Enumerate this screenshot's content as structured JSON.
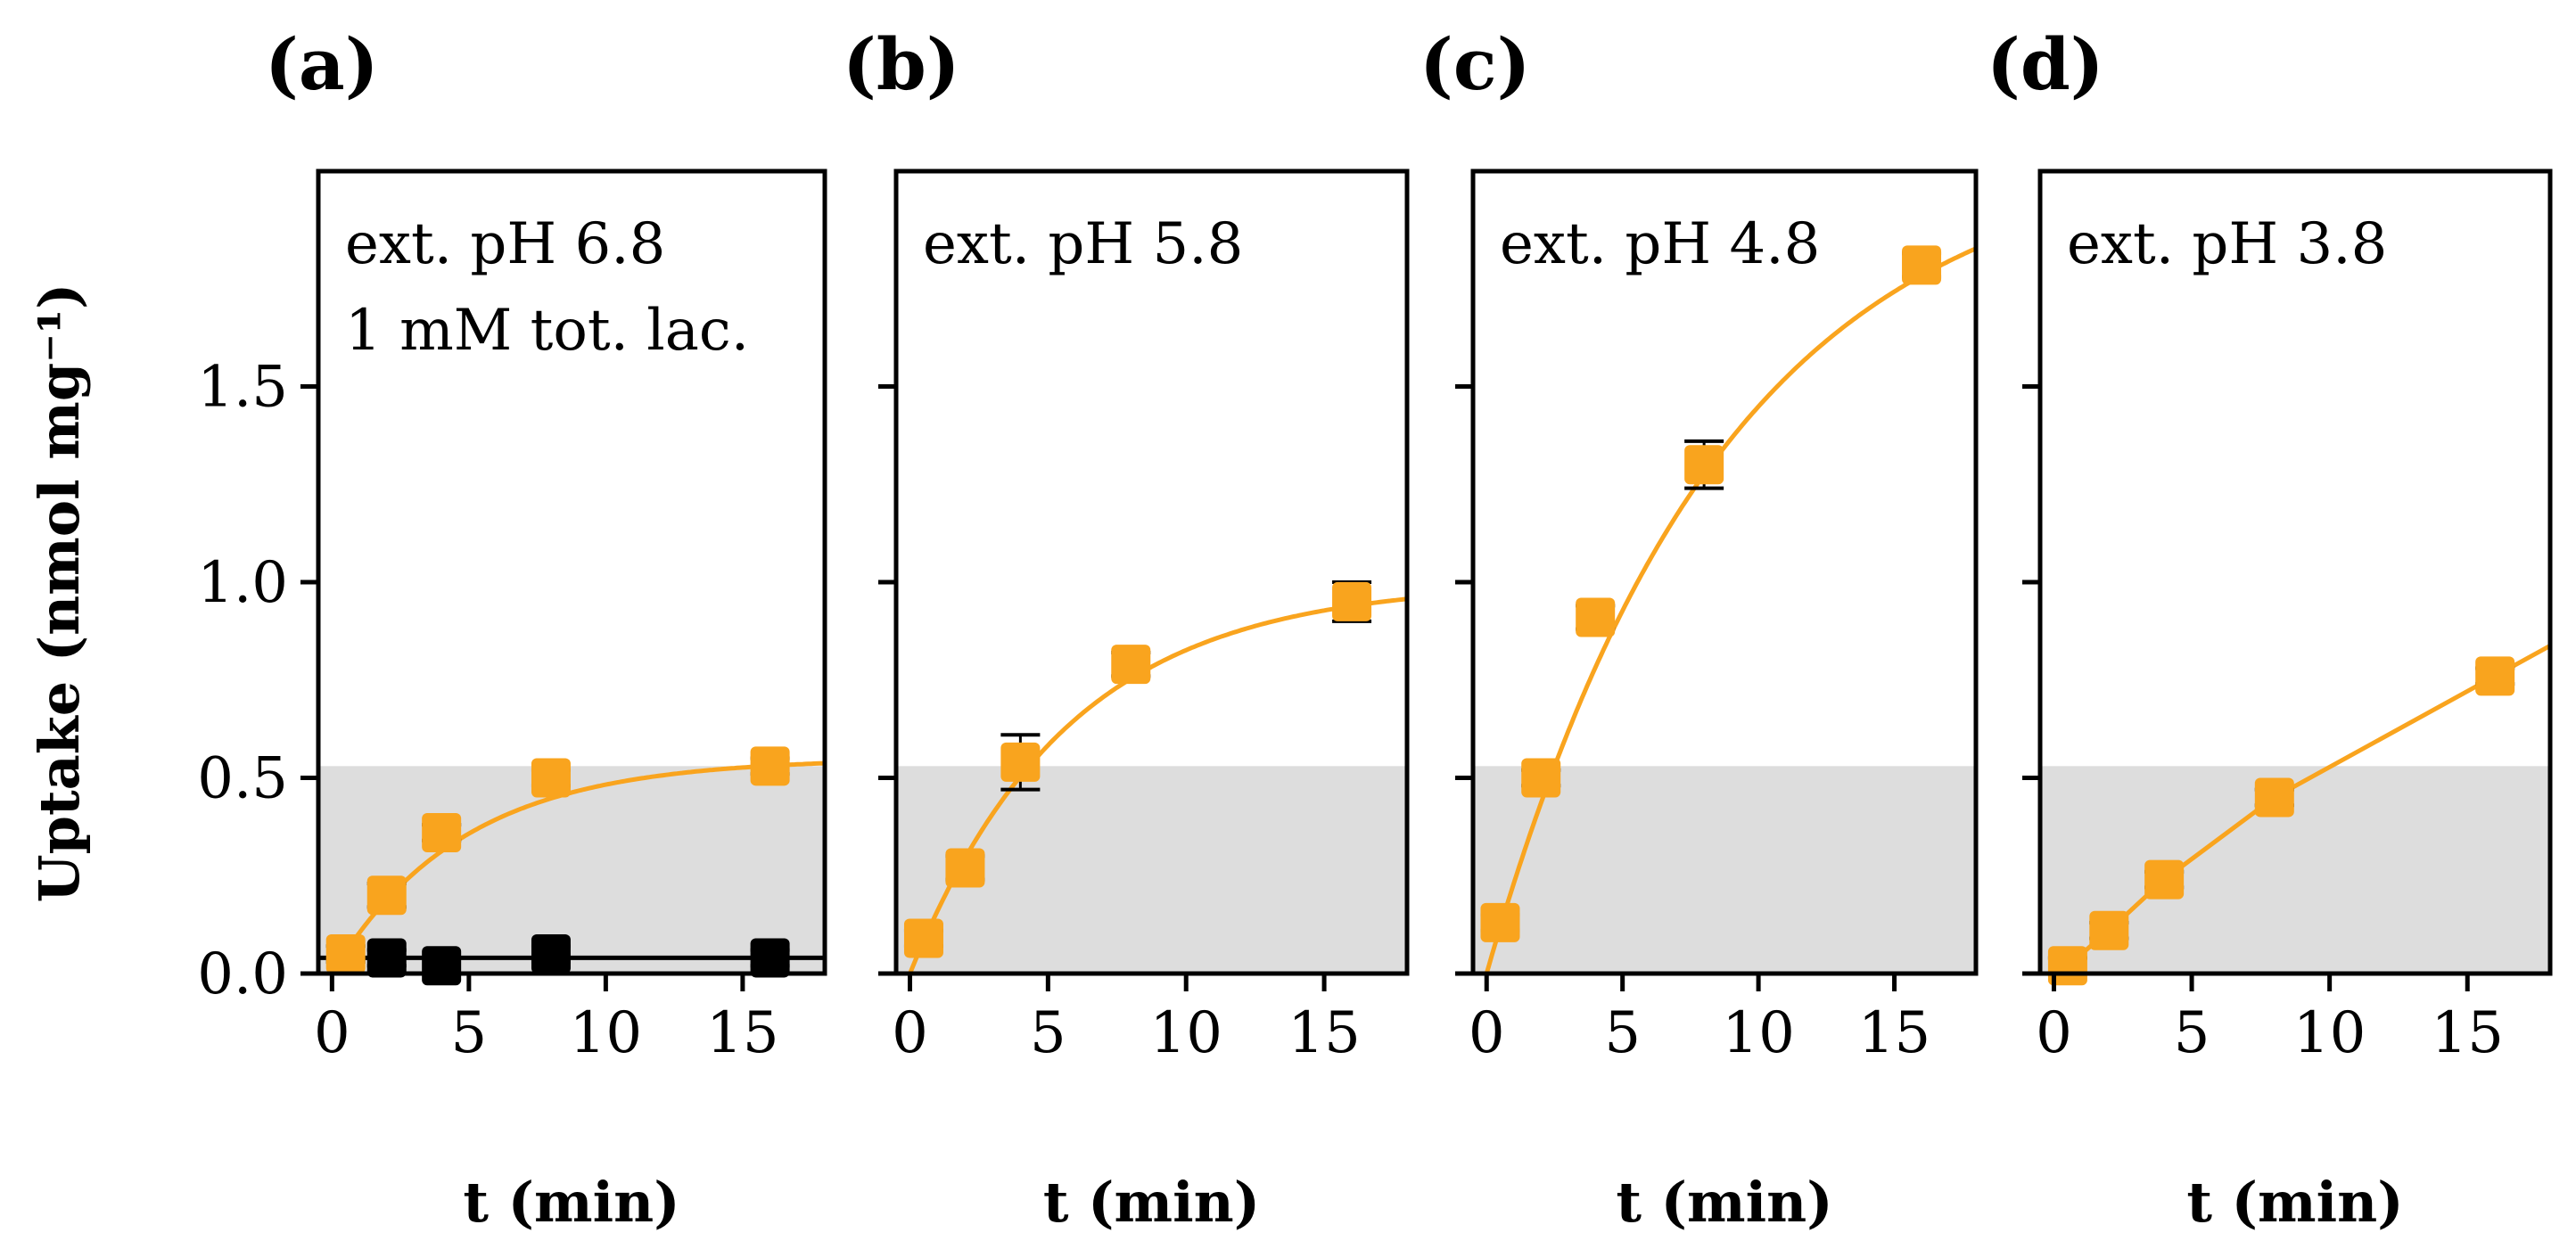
{
  "colors": {
    "orange": "#F9A41E",
    "black": "#000000",
    "shade": "#DDDDDD"
  },
  "ylabel": "Uptake (nmol mg⁻¹)",
  "chart_data": [
    {
      "type": "scatter",
      "panel": "(a)",
      "annotation": [
        "ext. pH 6.8",
        "1 mM tot. lac."
      ],
      "xlabel": "t (min)",
      "ylabel": "Uptake (nmol mg⁻¹)",
      "xlim": [
        -0.5,
        18
      ],
      "ylim": [
        0,
        2.05
      ],
      "xticks": [
        "0",
        "5",
        "10",
        "15"
      ],
      "yticks": [
        "0.0",
        "0.5",
        "1.0",
        "1.5"
      ],
      "shaded_region_y": [
        0,
        0.53
      ],
      "series": [
        {
          "name": "orange",
          "color": "#F9A41E",
          "x": [
            0.5,
            2,
            4,
            8,
            16
          ],
          "y": [
            0.05,
            0.2,
            0.36,
            0.5,
            0.53
          ],
          "err": [
            0.02,
            0.03,
            0.02,
            0.02,
            0.02
          ],
          "fit": {
            "model": "saturation",
            "A": 0.55,
            "k": 0.21
          }
        },
        {
          "name": "black",
          "color": "#000000",
          "x": [
            2,
            4,
            8,
            16
          ],
          "y": [
            0.04,
            0.02,
            0.05,
            0.04
          ],
          "err": [
            0.02,
            0.02,
            0.02,
            0.02
          ],
          "fit": {
            "model": "constant",
            "c": 0.04
          }
        }
      ]
    },
    {
      "type": "scatter",
      "panel": "(b)",
      "annotation": [
        "ext. pH 5.8"
      ],
      "xlabel": "t (min)",
      "xlim": [
        -0.5,
        18
      ],
      "ylim": [
        0,
        2.05
      ],
      "xticks": [
        "0",
        "5",
        "10",
        "15"
      ],
      "shaded_region_y": [
        0,
        0.53
      ],
      "series": [
        {
          "name": "orange",
          "color": "#F9A41E",
          "x": [
            0.5,
            2,
            4,
            8,
            16
          ],
          "y": [
            0.09,
            0.27,
            0.54,
            0.79,
            0.95
          ],
          "err": [
            0.02,
            0.03,
            0.07,
            0.03,
            0.05
          ],
          "fit": {
            "model": "saturation",
            "A": 1.0,
            "k": 0.175
          }
        }
      ]
    },
    {
      "type": "scatter",
      "panel": "(c)",
      "annotation": [
        "ext. pH 4.8"
      ],
      "xlabel": "t (min)",
      "xlim": [
        -0.5,
        18
      ],
      "ylim": [
        0,
        2.05
      ],
      "xticks": [
        "0",
        "5",
        "10",
        "15"
      ],
      "shaded_region_y": [
        0,
        0.53
      ],
      "series": [
        {
          "name": "orange",
          "color": "#F9A41E",
          "x": [
            0.5,
            2,
            4,
            8,
            16
          ],
          "y": [
            0.13,
            0.5,
            0.91,
            1.3,
            1.81
          ],
          "err": [
            0.02,
            0.02,
            0.03,
            0.06,
            0.03
          ],
          "fit": {
            "model": "saturation",
            "A": 2.12,
            "k": 0.115
          }
        }
      ]
    },
    {
      "type": "scatter",
      "panel": "(d)",
      "annotation": [
        "ext. pH 3.8"
      ],
      "xlabel": "t (min)",
      "xlim": [
        -0.5,
        18
      ],
      "ylim": [
        0,
        2.05
      ],
      "xticks": [
        "0",
        "5",
        "10",
        "15"
      ],
      "shaded_region_y": [
        0,
        0.53
      ],
      "series": [
        {
          "name": "orange",
          "color": "#F9A41E",
          "x": [
            0.5,
            2,
            4,
            8,
            16
          ],
          "y": [
            0.02,
            0.11,
            0.24,
            0.45,
            0.76
          ],
          "err": [
            0.02,
            0.02,
            0.02,
            0.02,
            0.02
          ],
          "fit": {
            "model": "polyline"
          }
        }
      ]
    }
  ]
}
